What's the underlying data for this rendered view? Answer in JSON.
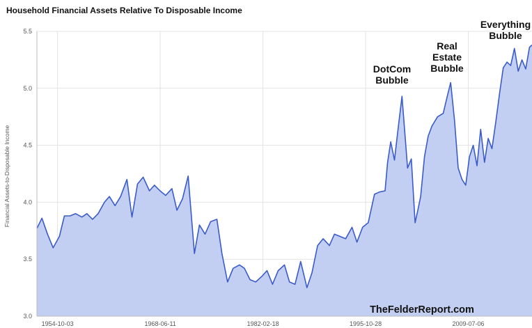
{
  "title": "Household Financial Assets Relative To Disposable Income",
  "watermark": "TheFelderReport.com",
  "chart_data": {
    "type": "area",
    "title": "Household Financial Assets Relative To Disposable Income",
    "xlabel": "",
    "ylabel": "Financial Assets-to-Disposable Income",
    "ylim": [
      3.0,
      5.5
    ],
    "xlim": [
      "1952-01-01",
      "2018-01-01"
    ],
    "grid": true,
    "colors": {
      "line": "#3a5bc9",
      "fill": "#c3cff2",
      "grid": "#e3e3e3",
      "axis": "#bbbbbb"
    },
    "y_ticks": [
      "3.0",
      "3.5",
      "4.0",
      "4.5",
      "5.0",
      "5.5"
    ],
    "x_ticks": [
      "1954-10-03",
      "1968-06-11",
      "1982-02-18",
      "1995-10-28",
      "2009-07-06"
    ],
    "annotations": [
      {
        "lines": [
          "DotCom",
          "Bubble"
        ],
        "x": "2000-06-01"
      },
      {
        "lines": [
          "Real",
          "Estate",
          "Bubble"
        ],
        "x": "2007-06-01"
      },
      {
        "lines": [
          "Everything",
          "Bubble"
        ],
        "x": "2015-01-01"
      }
    ],
    "series": [
      {
        "x": [
          "1952-01-01",
          "1952-09-01",
          "1953-06-01",
          "1954-03-01",
          "1955-01-01",
          "1955-09-01",
          "1956-06-01",
          "1957-03-01",
          "1958-01-01",
          "1958-09-01",
          "1959-06-01",
          "1960-03-01",
          "1961-01-01",
          "1961-09-01",
          "1962-06-01",
          "1963-03-01",
          "1964-01-01",
          "1964-09-01",
          "1965-06-01",
          "1966-03-01",
          "1967-01-01",
          "1967-09-01",
          "1968-06-01",
          "1969-03-01",
          "1970-01-01",
          "1970-09-01",
          "1971-06-01",
          "1972-03-01",
          "1973-01-01",
          "1973-09-01",
          "1974-06-01",
          "1975-03-01",
          "1976-01-01",
          "1976-09-01",
          "1977-06-01",
          "1978-03-01",
          "1979-01-01",
          "1979-09-01",
          "1980-06-01",
          "1981-03-01",
          "1982-01-01",
          "1982-09-01",
          "1983-06-01",
          "1984-03-01",
          "1985-01-01",
          "1985-09-01",
          "1986-06-01",
          "1987-03-01",
          "1988-01-01",
          "1988-09-01",
          "1989-06-01",
          "1990-03-01",
          "1991-01-01",
          "1991-09-01",
          "1992-06-01",
          "1993-03-01",
          "1994-01-01",
          "1994-09-01",
          "1995-06-01",
          "1996-03-01",
          "1997-01-01",
          "1997-09-01",
          "1998-06-01",
          "1998-10-01",
          "1999-03-01",
          "1999-09-01",
          "2000-03-01",
          "2000-09-01",
          "2001-06-01",
          "2001-12-01",
          "2002-06-01",
          "2002-10-01",
          "2003-03-01",
          "2003-09-01",
          "2004-03-01",
          "2004-09-01",
          "2005-06-01",
          "2006-03-01",
          "2006-09-01",
          "2007-03-01",
          "2007-09-01",
          "2008-03-01",
          "2008-09-01",
          "2009-03-01",
          "2009-09-01",
          "2010-03-01",
          "2010-09-01",
          "2011-03-01",
          "2011-09-01",
          "2012-03-01",
          "2012-09-01",
          "2013-03-01",
          "2013-09-01",
          "2014-03-01",
          "2014-09-01",
          "2015-03-01",
          "2015-09-01",
          "2016-03-01",
          "2016-09-01",
          "2017-03-01",
          "2017-09-01",
          "2018-01-01"
        ],
        "values": [
          3.77,
          3.86,
          3.72,
          3.6,
          3.7,
          3.88,
          3.88,
          3.9,
          3.87,
          3.9,
          3.85,
          3.9,
          4.0,
          4.05,
          3.97,
          4.05,
          4.2,
          3.87,
          4.16,
          4.22,
          4.1,
          4.15,
          4.1,
          4.06,
          4.12,
          3.93,
          4.03,
          4.23,
          3.55,
          3.8,
          3.72,
          3.83,
          3.85,
          3.55,
          3.3,
          3.42,
          3.45,
          3.42,
          3.32,
          3.3,
          3.35,
          3.4,
          3.28,
          3.4,
          3.45,
          3.3,
          3.28,
          3.48,
          3.25,
          3.38,
          3.62,
          3.68,
          3.62,
          3.72,
          3.7,
          3.68,
          3.78,
          3.65,
          3.78,
          3.82,
          4.07,
          4.09,
          4.1,
          4.35,
          4.53,
          4.37,
          4.65,
          4.93,
          4.3,
          4.38,
          3.82,
          3.92,
          4.05,
          4.4,
          4.58,
          4.67,
          4.75,
          4.78,
          4.92,
          5.05,
          4.72,
          4.3,
          4.2,
          4.15,
          4.4,
          4.5,
          4.32,
          4.64,
          4.35,
          4.56,
          4.47,
          4.7,
          4.95,
          5.18,
          5.23,
          5.2,
          5.35,
          5.15,
          5.25,
          5.17,
          5.36,
          5.38
        ]
      }
    ]
  }
}
